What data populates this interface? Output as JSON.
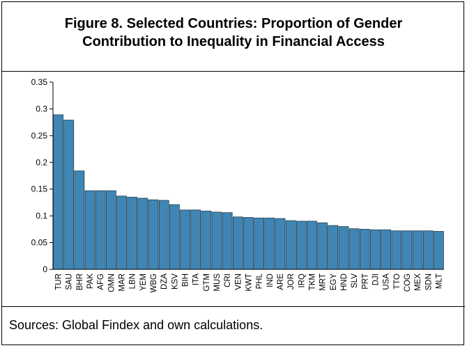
{
  "figure": {
    "title_line1": "Figure 8. Selected Countries: Proportion of Gender",
    "title_line2": "Contribution to Inequality in Financial Access",
    "source": "Sources: Global Findex and own calculations."
  },
  "chart_data": {
    "type": "bar",
    "title": "Figure 8. Selected Countries: Proportion of Gender Contribution to Inequality in Financial Access",
    "xlabel": "",
    "ylabel": "",
    "ylim": [
      0,
      0.35
    ],
    "yticks": [
      0,
      0.05,
      0.1,
      0.15,
      0.2,
      0.25,
      0.3,
      0.35
    ],
    "ytick_labels": [
      "0",
      "0.05",
      "0.1",
      "0.15",
      "0.2",
      "0.25",
      "0.3",
      "0.35"
    ],
    "grid": false,
    "bar_color": "#3F86B4",
    "bar_edge_color": "#1F3B50",
    "categories": [
      "TUR",
      "SAU",
      "BHR",
      "PAK",
      "AFG",
      "OMN",
      "MAR",
      "LBN",
      "YEM",
      "WBG",
      "DZA",
      "KSV",
      "BIH",
      "ITA",
      "GTM",
      "MUS",
      "CRI",
      "VEN",
      "KWT",
      "PHL",
      "IND",
      "ARE",
      "JOR",
      "IRQ",
      "TKM",
      "MRT",
      "EGY",
      "HND",
      "SLV",
      "PRT",
      "DJI",
      "USA",
      "TTO",
      "COG",
      "MEX",
      "SDN",
      "MLT"
    ],
    "values": [
      0.289,
      0.279,
      0.184,
      0.147,
      0.147,
      0.147,
      0.137,
      0.135,
      0.133,
      0.13,
      0.129,
      0.121,
      0.111,
      0.111,
      0.109,
      0.107,
      0.106,
      0.098,
      0.097,
      0.096,
      0.096,
      0.095,
      0.091,
      0.09,
      0.09,
      0.087,
      0.082,
      0.08,
      0.076,
      0.075,
      0.074,
      0.074,
      0.072,
      0.072,
      0.072,
      0.072,
      0.071
    ]
  }
}
